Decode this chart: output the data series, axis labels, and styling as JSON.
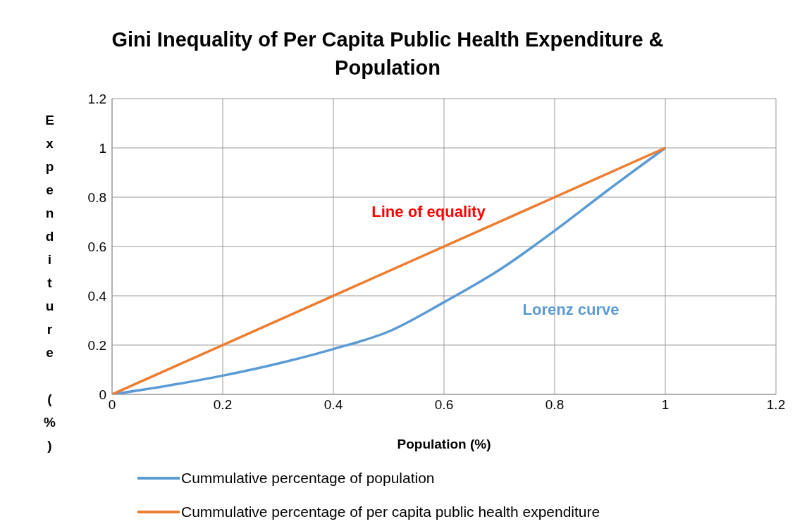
{
  "chart_data": {
    "type": "line",
    "title": "Gini Inequality of Per Capita Public Health Expenditure & Population",
    "xlabel": "Population (%)",
    "ylabel": "Expenditure (%)",
    "series": [
      {
        "name": "Cummulative percentage of population",
        "color": "#5b9bd5",
        "x": [
          0,
          0.1,
          0.2,
          0.3,
          0.4,
          0.5,
          0.6,
          0.7,
          0.8,
          0.9,
          1
        ],
        "values": [
          0,
          0.035,
          0.076,
          0.125,
          0.184,
          0.255,
          0.374,
          0.505,
          0.664,
          0.835,
          1
        ]
      },
      {
        "name": "Cummulative percentage of per capita public health expenditure",
        "color": "#ed7d31",
        "x": [
          0,
          1
        ],
        "values": [
          0,
          1
        ]
      }
    ],
    "xlim": [
      0,
      1.2
    ],
    "xticks": [
      0,
      0.2,
      0.4,
      0.6,
      0.8,
      1,
      1.2
    ],
    "ylim": [
      0,
      1.2
    ],
    "yticks": [
      0,
      0.2,
      0.4,
      0.6,
      0.8,
      1,
      1.2
    ],
    "grid": true,
    "legend": "bottom",
    "marker": "none",
    "line_style": "solid",
    "annotations": [
      "Line of equality",
      "Lorenz curve"
    ]
  }
}
